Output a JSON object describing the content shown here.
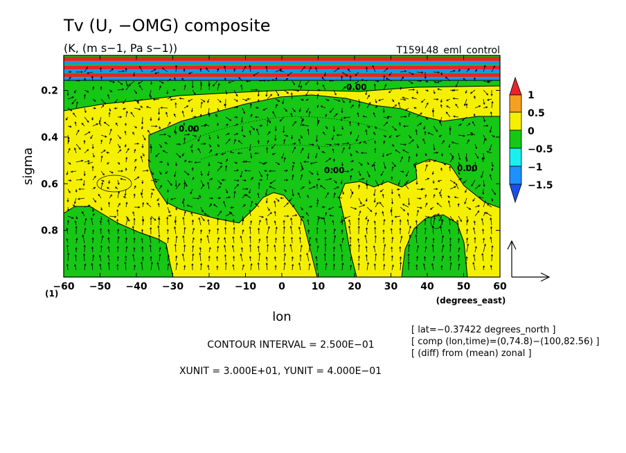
{
  "chart_data": {
    "type": "heatmap",
    "title": "Tv (U, −OMG) composite",
    "subtitle": "(K, (m s−1, Pa s−1))",
    "run_label": "T159L48_eml_control",
    "xlabel": "lon",
    "xunit_label": "(degrees_east)",
    "ylabel": "sigma",
    "xlim": [
      -60,
      60
    ],
    "ylim": [
      1.0,
      0.05
    ],
    "x_ticks": [
      "−60",
      "−50",
      "−40",
      "−30",
      "−20",
      "−10",
      "0",
      "10",
      "20",
      "30",
      "40",
      "50",
      "60"
    ],
    "y_ticks": [
      "0.2",
      "0.4",
      "0.6",
      "0.8"
    ],
    "y_tick_values": [
      0.2,
      0.4,
      0.6,
      0.8
    ],
    "corner_label": "(1)",
    "contour_labels": [
      "0.00",
      "0.00",
      "0.00",
      "0.00"
    ],
    "colorbar": {
      "levels": [
        "1",
        "0.5",
        "0",
        "−0.5",
        "−1",
        "−1.5"
      ],
      "colors": [
        "#e8242a",
        "#f5a020",
        "#f5f000",
        "#16c716",
        "#19f0f0",
        "#1e90ff",
        "#1a50e8"
      ]
    },
    "notes": {
      "contour_interval": "CONTOUR INTERVAL = 2.500E−01",
      "units": "XUNIT = 3.000E+01, YUNIT = 4.000E−01"
    },
    "info": [
      "[ lat=−0.37422 degrees_north ]",
      "[ comp (lon,time)=(0,74.8)−(100,82.56) ]",
      "[ (diff) from (mean) zonal ]"
    ],
    "colors": {
      "positive": "#f5f000",
      "negative": "#16c716",
      "strong_positive": "#e8242a",
      "strong_negative": "#1e90ff"
    }
  }
}
